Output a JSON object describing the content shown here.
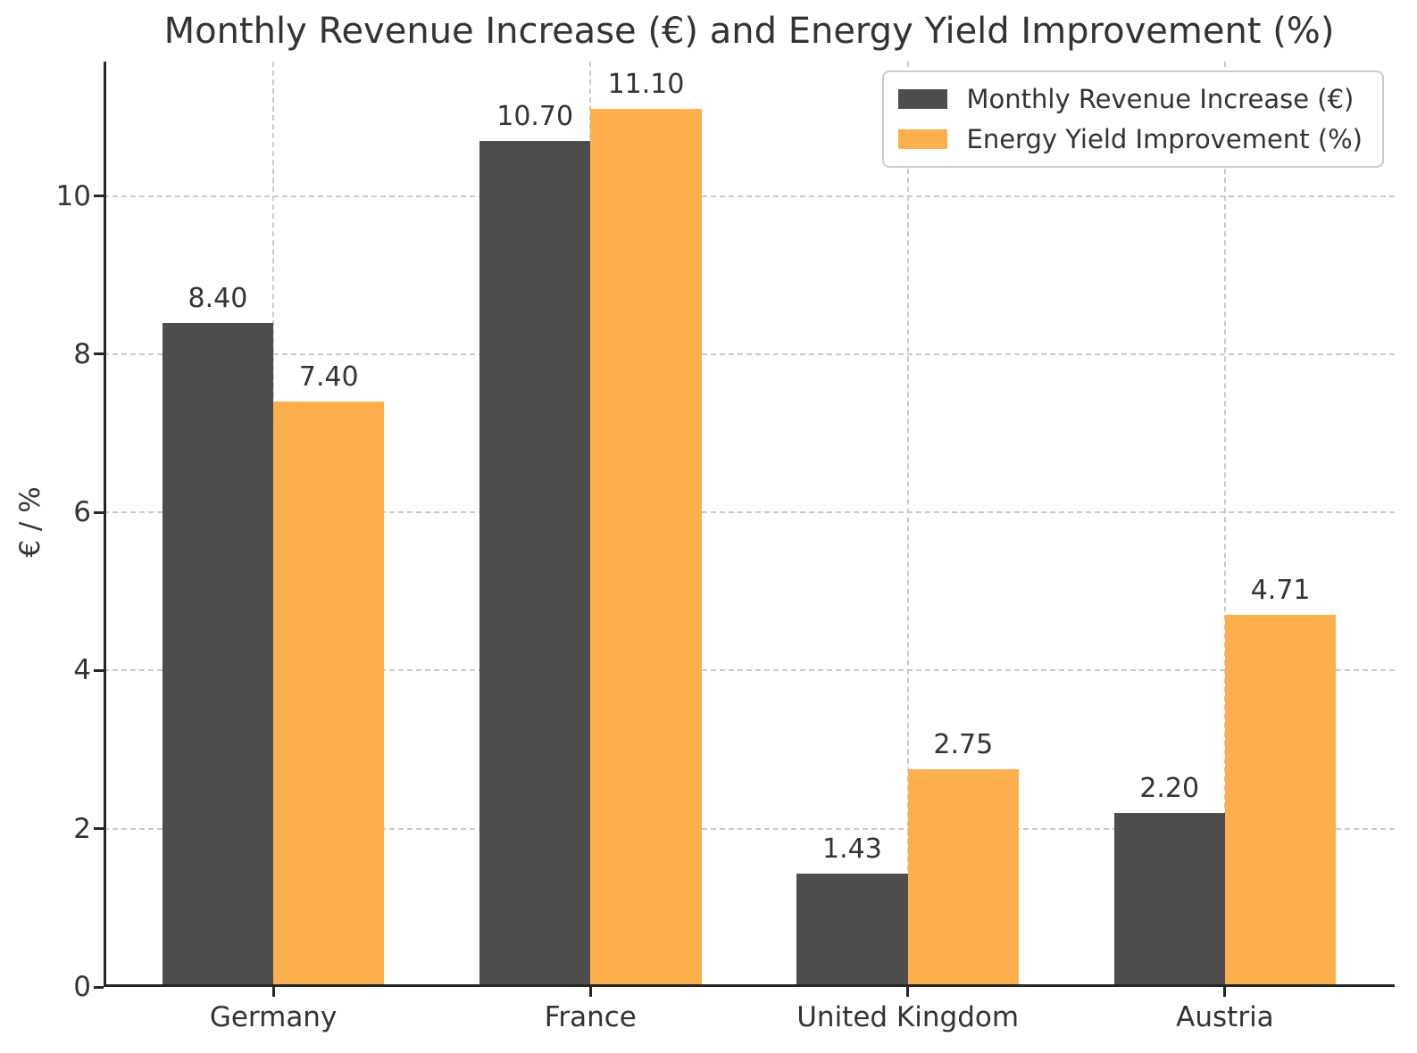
{
  "chart_data": {
    "type": "bar",
    "title": "Monthly Revenue Increase (€) and Energy Yield Improvement (%)",
    "ylabel": "€ / %",
    "xlabel": "",
    "categories": [
      "Germany",
      "France",
      "United Kingdom",
      "Austria"
    ],
    "series": [
      {
        "name": "Monthly Revenue Increase (€)",
        "color": "#4d4d4d",
        "values": [
          8.4,
          10.7,
          1.43,
          2.2
        ]
      },
      {
        "name": "Energy Yield Improvement (%)",
        "color": "#fdae4d",
        "values": [
          7.4,
          11.1,
          2.75,
          4.71
        ]
      }
    ],
    "yticks": [
      0,
      2,
      4,
      6,
      8,
      10
    ],
    "ylim": [
      0,
      11.7
    ],
    "bar_width_units": 0.35,
    "value_label_decimals": 2,
    "grid": "dashed both axes",
    "legend_position": "upper right",
    "colors": {
      "axis": "#262626",
      "grid": "#c9c9c9",
      "text": "#333333",
      "background": "#ffffff"
    }
  }
}
